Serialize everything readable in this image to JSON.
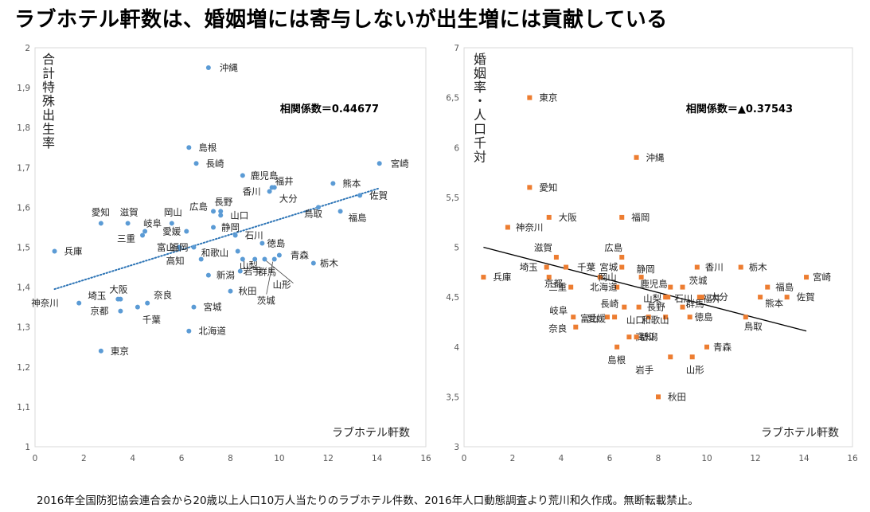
{
  "title": "ラブホテル軒数は、婚姻増には寄与しないが出生増には貢献している",
  "footnote": "2016年全国防犯協会連合会から20歳以上人口10万人当たりのラブホテル件数、2016年人口動態調査より荒川和久作成。無断転載禁止。",
  "colors": {
    "left_points": "#5b9bd5",
    "right_points": "#ed7d31",
    "left_trend": "#2e75b6",
    "right_trend": "#000000",
    "axis": "#d9d9d9"
  },
  "chart_data": [
    {
      "type": "scatter",
      "xlabel": "ラブホテル軒数",
      "ylabel": "合計特殊出生率",
      "annotation": "相関係数＝0.44677",
      "xlim": [
        0,
        16
      ],
      "ylim": [
        1,
        2
      ],
      "xticks": [
        "0",
        "2",
        "4",
        "6",
        "8",
        "10",
        "12",
        "14",
        "16"
      ],
      "yticks": [
        "1",
        "1,1",
        "1,2",
        "1,3",
        "1,4",
        "1,5",
        "1,6",
        "1,7",
        "1,8",
        "1,9",
        "2"
      ],
      "trendline": {
        "style": "dotted",
        "x": [
          0.8,
          14.1
        ],
        "y": [
          1.395,
          1.648
        ]
      },
      "points": [
        {
          "name": "沖縄",
          "x": 7.1,
          "y": 1.95
        },
        {
          "name": "島根",
          "x": 6.3,
          "y": 1.75
        },
        {
          "name": "長崎",
          "x": 6.6,
          "y": 1.71
        },
        {
          "name": "宮崎",
          "x": 14.1,
          "y": 1.71
        },
        {
          "name": "鹿児島",
          "x": 8.5,
          "y": 1.68
        },
        {
          "name": "福井",
          "x": 9.7,
          "y": 1.65
        },
        {
          "name": "熊本",
          "x": 12.2,
          "y": 1.66
        },
        {
          "name": "香川",
          "x": 9.6,
          "y": 1.64
        },
        {
          "name": "大分",
          "x": 9.8,
          "y": 1.65
        },
        {
          "name": "佐賀",
          "x": 13.3,
          "y": 1.63
        },
        {
          "name": "長野",
          "x": 7.6,
          "y": 1.59
        },
        {
          "name": "鳥取",
          "x": 11.6,
          "y": 1.6
        },
        {
          "name": "福島",
          "x": 12.5,
          "y": 1.59
        },
        {
          "name": "広島",
          "x": 7.3,
          "y": 1.59
        },
        {
          "name": "山口",
          "x": 7.6,
          "y": 1.58
        },
        {
          "name": "愛知",
          "x": 2.7,
          "y": 1.56
        },
        {
          "name": "滋賀",
          "x": 3.8,
          "y": 1.56
        },
        {
          "name": "岡山",
          "x": 5.6,
          "y": 1.56
        },
        {
          "name": "岐阜",
          "x": 4.5,
          "y": 1.54
        },
        {
          "name": "静岡",
          "x": 7.3,
          "y": 1.55
        },
        {
          "name": "愛媛",
          "x": 6.2,
          "y": 1.54
        },
        {
          "name": "石川",
          "x": 8.2,
          "y": 1.53
        },
        {
          "name": "三重",
          "x": 4.4,
          "y": 1.53
        },
        {
          "name": "富山",
          "x": 5.9,
          "y": 1.5
        },
        {
          "name": "福岡",
          "x": 6.5,
          "y": 1.5
        },
        {
          "name": "徳島",
          "x": 9.3,
          "y": 1.51
        },
        {
          "name": "兵庫",
          "x": 0.8,
          "y": 1.49
        },
        {
          "name": "青森",
          "x": 10.0,
          "y": 1.48
        },
        {
          "name": "高知",
          "x": 6.8,
          "y": 1.47
        },
        {
          "name": "和歌山",
          "x": 8.3,
          "y": 1.49
        },
        {
          "name": "山梨",
          "x": 8.5,
          "y": 1.47
        },
        {
          "name": "栃木",
          "x": 11.4,
          "y": 1.46
        },
        {
          "name": "群馬",
          "x": 9.0,
          "y": 1.47
        },
        {
          "name": "岩手",
          "x": 8.4,
          "y": 1.44
        },
        {
          "name": "山形",
          "x": 9.4,
          "y": 1.47
        },
        {
          "name": "新潟",
          "x": 7.1,
          "y": 1.43
        },
        {
          "name": "茨城",
          "x": 9.8,
          "y": 1.47
        },
        {
          "name": "大阪",
          "x": 3.5,
          "y": 1.37
        },
        {
          "name": "秋田",
          "x": 8.0,
          "y": 1.39
        },
        {
          "name": "奈良",
          "x": 4.6,
          "y": 1.36
        },
        {
          "name": "埼玉",
          "x": 3.4,
          "y": 1.37
        },
        {
          "name": "神奈川",
          "x": 1.8,
          "y": 1.36
        },
        {
          "name": "宮城",
          "x": 6.5,
          "y": 1.35
        },
        {
          "name": "京都",
          "x": 3.5,
          "y": 1.34
        },
        {
          "name": "千葉",
          "x": 4.2,
          "y": 1.35
        },
        {
          "name": "北海道",
          "x": 6.3,
          "y": 1.29
        },
        {
          "name": "東京",
          "x": 2.7,
          "y": 1.24
        }
      ]
    },
    {
      "type": "scatter",
      "xlabel": "ラブホテル軒数",
      "ylabel": "婚姻率・人口千対",
      "annotation": "相関係数＝▲0.37543",
      "xlim": [
        0,
        16
      ],
      "ylim": [
        3,
        7
      ],
      "xticks": [
        "0",
        "2",
        "4",
        "6",
        "8",
        "10",
        "12",
        "14",
        "16"
      ],
      "yticks": [
        "3",
        "3,5",
        "4",
        "4,5",
        "5",
        "5,5",
        "6",
        "6,5",
        "7"
      ],
      "trendline": {
        "style": "solid",
        "x": [
          0.8,
          14.1
        ],
        "y": [
          5.0,
          4.16
        ]
      },
      "points": [
        {
          "name": "東京",
          "x": 2.7,
          "y": 6.5
        },
        {
          "name": "沖縄",
          "x": 7.1,
          "y": 5.9
        },
        {
          "name": "愛知",
          "x": 2.7,
          "y": 5.6
        },
        {
          "name": "大阪",
          "x": 3.5,
          "y": 5.3
        },
        {
          "name": "福岡",
          "x": 6.5,
          "y": 5.3
        },
        {
          "name": "神奈川",
          "x": 1.8,
          "y": 5.2
        },
        {
          "name": "滋賀",
          "x": 3.8,
          "y": 4.9
        },
        {
          "name": "広島",
          "x": 6.5,
          "y": 4.9
        },
        {
          "name": "千葉",
          "x": 4.2,
          "y": 4.8
        },
        {
          "name": "宮城",
          "x": 6.5,
          "y": 4.8
        },
        {
          "name": "埼玉",
          "x": 3.4,
          "y": 4.8
        },
        {
          "name": "静岡",
          "x": 7.3,
          "y": 4.7
        },
        {
          "name": "香川",
          "x": 9.6,
          "y": 4.8
        },
        {
          "name": "栃木",
          "x": 11.4,
          "y": 4.8
        },
        {
          "name": "兵庫",
          "x": 0.8,
          "y": 4.7
        },
        {
          "name": "宮崎",
          "x": 14.1,
          "y": 4.7
        },
        {
          "name": "京都",
          "x": 3.5,
          "y": 4.7
        },
        {
          "name": "岡山",
          "x": 5.6,
          "y": 4.7
        },
        {
          "name": "鹿児島",
          "x": 8.5,
          "y": 4.6
        },
        {
          "name": "茨城",
          "x": 9.0,
          "y": 4.6
        },
        {
          "name": "三重",
          "x": 4.4,
          "y": 4.6
        },
        {
          "name": "北海道",
          "x": 6.3,
          "y": 4.6
        },
        {
          "name": "福井",
          "x": 9.7,
          "y": 4.5
        },
        {
          "name": "福島",
          "x": 12.5,
          "y": 4.6
        },
        {
          "name": "山梨",
          "x": 8.3,
          "y": 4.5
        },
        {
          "name": "石川",
          "x": 8.4,
          "y": 4.5
        },
        {
          "name": "大分",
          "x": 9.8,
          "y": 4.5
        },
        {
          "name": "佐賀",
          "x": 13.3,
          "y": 4.5
        },
        {
          "name": "熊本",
          "x": 12.2,
          "y": 4.5
        },
        {
          "name": "長崎",
          "x": 6.6,
          "y": 4.4
        },
        {
          "name": "長野",
          "x": 7.2,
          "y": 4.4
        },
        {
          "name": "群馬",
          "x": 9.0,
          "y": 4.4
        },
        {
          "name": "岐阜",
          "x": 4.5,
          "y": 4.3
        },
        {
          "name": "富山",
          "x": 5.9,
          "y": 4.3
        },
        {
          "name": "愛媛",
          "x": 6.2,
          "y": 4.3
        },
        {
          "name": "山口",
          "x": 7.6,
          "y": 4.3
        },
        {
          "name": "和歌山",
          "x": 8.3,
          "y": 4.3
        },
        {
          "name": "徳島",
          "x": 9.3,
          "y": 4.3
        },
        {
          "name": "鳥取",
          "x": 11.6,
          "y": 4.3
        },
        {
          "name": "奈良",
          "x": 4.6,
          "y": 4.2
        },
        {
          "name": "高知",
          "x": 6.8,
          "y": 4.1
        },
        {
          "name": "新潟",
          "x": 7.1,
          "y": 4.1
        },
        {
          "name": "青森",
          "x": 10.0,
          "y": 4.0
        },
        {
          "name": "島根",
          "x": 6.3,
          "y": 4.0
        },
        {
          "name": "岩手",
          "x": 8.5,
          "y": 3.9
        },
        {
          "name": "山形",
          "x": 9.4,
          "y": 3.9
        },
        {
          "name": "秋田",
          "x": 8.0,
          "y": 3.5
        }
      ]
    }
  ]
}
